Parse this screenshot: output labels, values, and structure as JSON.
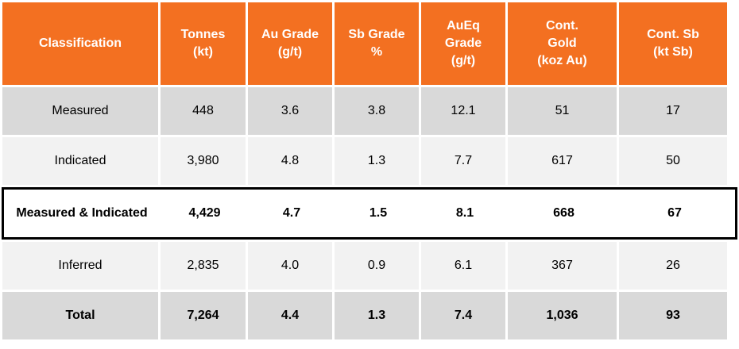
{
  "table": {
    "headers": [
      "Classification",
      "Tonnes\n(kt)",
      "Au Grade\n(g/t)",
      "Sb Grade\n%",
      "AuEq\nGrade\n(g/t)",
      "Cont.\nGold\n(koz Au)",
      "Cont. Sb\n(kt Sb)"
    ],
    "rows": [
      [
        "Measured",
        "448",
        "3.6",
        "3.8",
        "12.1",
        "51",
        "17"
      ],
      [
        "Indicated",
        "3,980",
        "4.8",
        "1.3",
        "7.7",
        "617",
        "50"
      ],
      [
        "Measured & Indicated",
        "4,429",
        "4.7",
        "1.5",
        "8.1",
        "668",
        "67"
      ],
      [
        "Inferred",
        "2,835",
        "4.0",
        "0.9",
        "6.1",
        "367",
        "26"
      ],
      [
        "Total",
        "7,264",
        "4.4",
        "1.3",
        "7.4",
        "1,036",
        "93"
      ]
    ]
  },
  "colors": {
    "header_bg": "#f37021",
    "header_text": "#ffffff",
    "row_grey": "#d9d9d9",
    "row_light": "#f2f2f2",
    "highlight_border": "#000000"
  }
}
